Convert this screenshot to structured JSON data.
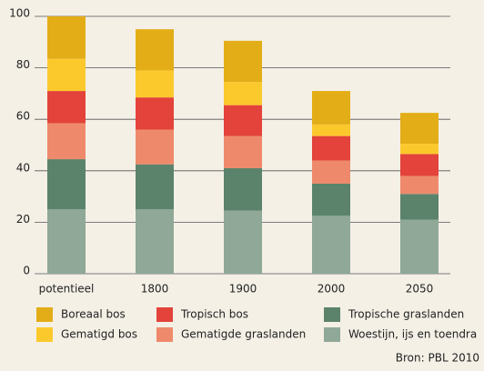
{
  "chart_data": {
    "type": "stacked_bar",
    "categories": [
      "potentieel",
      "1800",
      "1900",
      "2000",
      "2050"
    ],
    "series": [
      {
        "name": "Woestijn, ijs en toendra",
        "color": "#8fa898",
        "values": [
          25,
          25,
          24.5,
          22.5,
          21
        ]
      },
      {
        "name": "Tropische graslanden",
        "color": "#5b836c",
        "values": [
          19.5,
          17.5,
          16.5,
          12.5,
          10
        ]
      },
      {
        "name": "Gematigde graslanden",
        "color": "#ee8a6b",
        "values": [
          14,
          13.5,
          12.5,
          9,
          7
        ]
      },
      {
        "name": "Tropisch bos",
        "color": "#e3433a",
        "values": [
          12.5,
          12.5,
          12,
          9.5,
          8.5
        ]
      },
      {
        "name": "Gematigd bos",
        "color": "#fcc92d",
        "values": [
          12.5,
          10.5,
          9,
          4.5,
          4
        ]
      },
      {
        "name": "Boreaal bos",
        "color": "#e3ad17",
        "values": [
          16.5,
          16,
          16,
          13,
          12
        ]
      }
    ],
    "ylim": [
      0,
      100
    ],
    "yticks": [
      0,
      20,
      40,
      60,
      80,
      100
    ],
    "grid": true,
    "source": "Bron: PBL 2010"
  }
}
